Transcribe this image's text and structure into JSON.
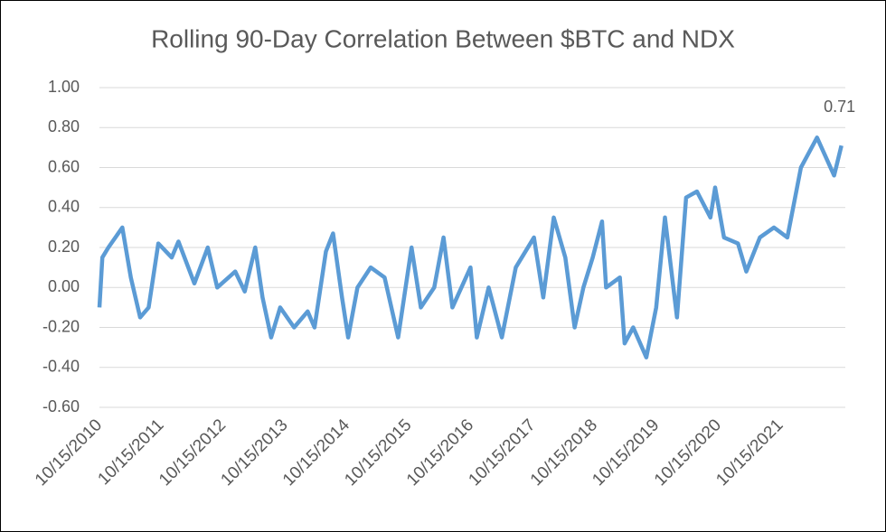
{
  "chart_data": {
    "type": "line",
    "title": "Rolling 90-Day Correlation Between $BTC and NDX",
    "color": "#5b9bd5",
    "x": [
      "10/15/2010",
      "11/01/2010",
      "12/07/2010",
      "02/27/2011",
      "04/18/2011",
      "06/12/2011",
      "08/01/2011",
      "09/27/2011",
      "12/15/2011",
      "01/24/2012",
      "04/27/2012",
      "07/15/2012",
      "09/09/2012",
      "12/24/2012",
      "02/18/2013",
      "04/21/2013",
      "06/03/2013",
      "07/24/2013",
      "09/15/2013",
      "12/06/2013",
      "02/24/2014",
      "04/06/2014",
      "06/12/2014",
      "07/24/2014",
      "09/15/2014",
      "10/21/2014",
      "12/15/2014",
      "03/03/2015",
      "05/24/2015",
      "08/12/2015",
      "10/30/2015",
      "12/24/2015",
      "03/12/2016",
      "05/06/2016",
      "06/27/2016",
      "10/12/2016",
      "11/18/2016",
      "01/27/2017",
      "04/15/2017",
      "07/06/2017",
      "10/21/2017",
      "12/15/2017",
      "02/15/2018",
      "04/24/2018",
      "06/18/2018",
      "08/09/2018",
      "10/03/2018",
      "11/27/2018",
      "12/21/2018",
      "03/12/2019",
      "04/09/2019",
      "05/30/2019",
      "08/15/2019",
      "10/12/2019",
      "12/03/2019",
      "02/12/2020",
      "04/06/2020",
      "06/09/2020",
      "08/27/2020",
      "09/24/2020",
      "11/15/2020",
      "02/06/2021",
      "03/27/2021",
      "06/15/2021",
      "09/06/2021",
      "11/24/2021",
      "02/12/2022",
      "05/18/2022",
      "07/21/2022",
      "08/27/2022",
      "10/09/2022"
    ],
    "values": [
      -0.1,
      0.15,
      0.2,
      0.3,
      0.05,
      -0.15,
      -0.1,
      0.22,
      0.15,
      0.23,
      0.02,
      0.2,
      0.0,
      0.08,
      -0.02,
      0.2,
      -0.05,
      -0.25,
      -0.1,
      -0.2,
      -0.12,
      -0.2,
      0.18,
      0.27,
      -0.05,
      -0.25,
      0.0,
      0.1,
      0.05,
      -0.25,
      0.2,
      -0.1,
      0.0,
      0.25,
      -0.1,
      0.1,
      -0.25,
      0.0,
      -0.25,
      0.1,
      0.25,
      -0.05,
      0.35,
      0.15,
      -0.2,
      0.0,
      0.15,
      0.33,
      0.0,
      0.05,
      -0.28,
      -0.2,
      -0.35,
      -0.1,
      0.35,
      -0.15,
      0.45,
      0.48,
      0.35,
      0.5,
      0.25,
      0.22,
      0.08,
      0.25,
      0.3,
      0.25,
      0.6,
      0.75,
      0.63,
      0.56,
      0.71
    ],
    "xlim": [
      "10/15/2010",
      "11/01/2022"
    ],
    "xticks": [
      "10/15/2010",
      "10/15/2011",
      "10/15/2012",
      "10/15/2013",
      "10/15/2014",
      "10/15/2015",
      "10/15/2016",
      "10/15/2017",
      "10/15/2018",
      "10/15/2019",
      "10/15/2020",
      "10/15/2021"
    ],
    "ylim": [
      -0.6,
      1.0
    ],
    "yticks": [
      {
        "value": -0.6,
        "label": "-0.60"
      },
      {
        "value": -0.4,
        "label": "-0.40"
      },
      {
        "value": -0.2,
        "label": "-0.20"
      },
      {
        "value": 0,
        "label": "0.00"
      },
      {
        "value": 0.2,
        "label": "0.20"
      },
      {
        "value": 0.4,
        "label": "0.40"
      },
      {
        "value": 0.6,
        "label": "0.60"
      },
      {
        "value": 0.8,
        "label": "0.80"
      },
      {
        "value": 1.0,
        "label": "1.00"
      }
    ],
    "grid": true
  }
}
